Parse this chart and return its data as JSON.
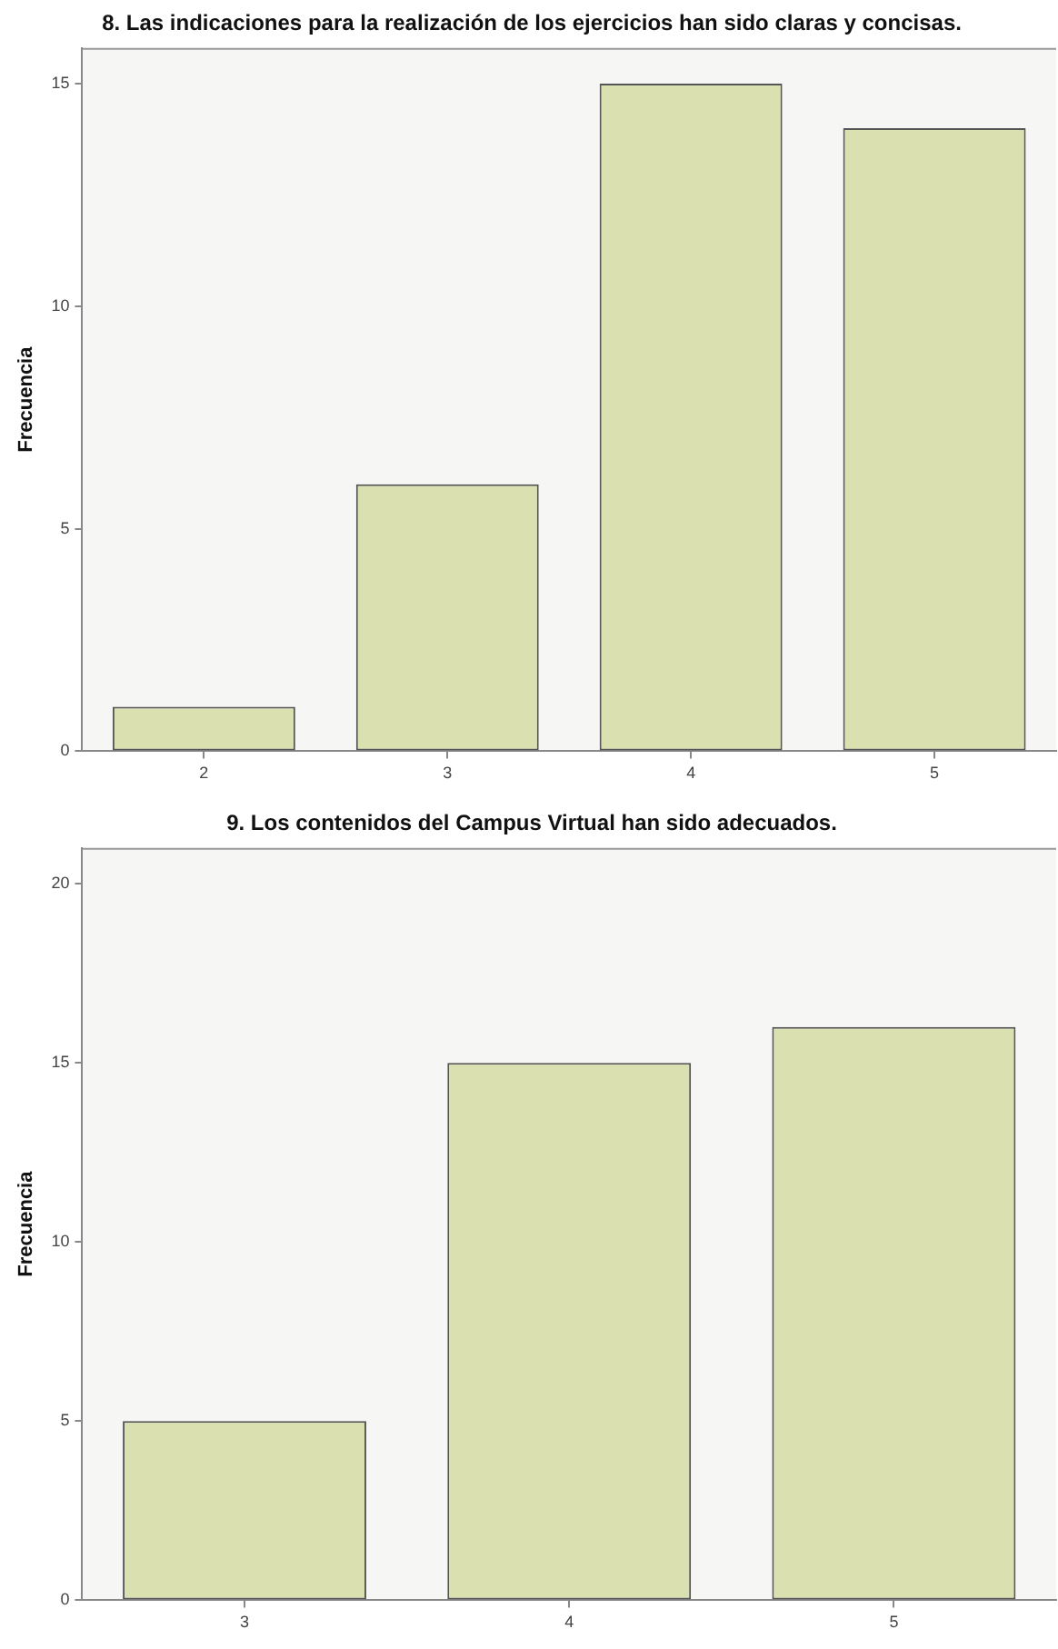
{
  "chart_data": [
    {
      "type": "bar",
      "title": "8. Las indicaciones para la realización de los ejercicios han sido claras y concisas.",
      "ylabel": "Frecuencia",
      "categories": [
        "2",
        "3",
        "4",
        "5"
      ],
      "series": [
        {
          "color": "#dbe0b1",
          "values": [
            1,
            6,
            15,
            14
          ]
        }
      ],
      "ylim": [
        0,
        15.8
      ],
      "yticks": [
        0,
        5,
        10,
        15
      ],
      "grid": false,
      "legend": false
    },
    {
      "type": "bar",
      "title": "9. Los contenidos del Campus Virtual han sido adecuados.",
      "ylabel": "Frecuencia",
      "categories": [
        "3",
        "4",
        "5"
      ],
      "series": [
        {
          "color": "#dbe0b1",
          "values": [
            5,
            15,
            16
          ]
        }
      ],
      "ylim": [
        0,
        21
      ],
      "yticks": [
        0,
        5,
        10,
        15,
        20
      ],
      "grid": false,
      "legend": false
    }
  ]
}
